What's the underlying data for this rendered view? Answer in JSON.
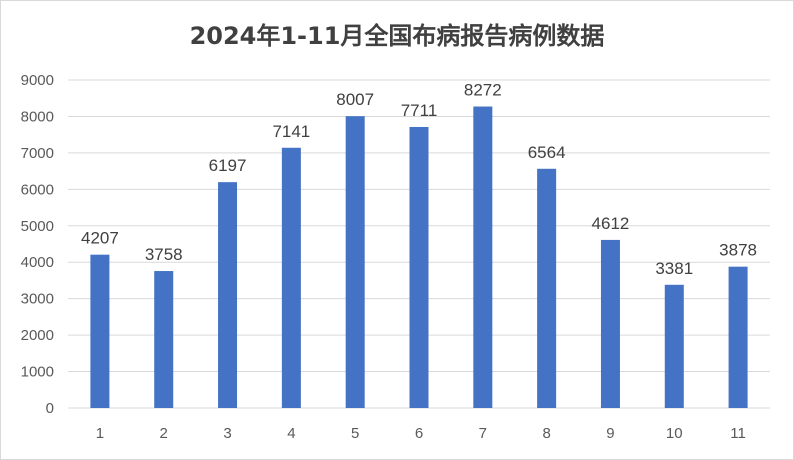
{
  "chart_data": {
    "type": "bar",
    "title": "2024年1-11月全国布病报告病例数据",
    "categories": [
      "1",
      "2",
      "3",
      "4",
      "5",
      "6",
      "7",
      "8",
      "9",
      "10",
      "11"
    ],
    "values": [
      4207,
      3758,
      6197,
      7141,
      8007,
      7711,
      8272,
      6564,
      4612,
      3381,
      3878
    ],
    "ylim": [
      0,
      9000
    ],
    "yticks": [
      "0",
      "1000",
      "2000",
      "3000",
      "4000",
      "5000",
      "6000",
      "7000",
      "8000",
      "9000"
    ],
    "grid": true,
    "legend": "none",
    "bar_color": "#4472C4",
    "grid_color": "#D9D9D9"
  }
}
